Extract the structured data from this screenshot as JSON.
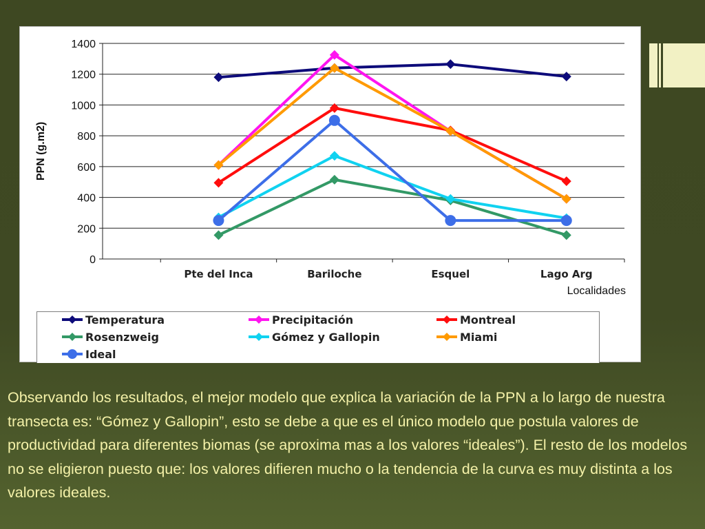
{
  "chart_data": {
    "type": "line",
    "categories": [
      "Pte del Inca",
      "Bariloche",
      "Esquel",
      "Lago Arg"
    ],
    "ylabel": "PPN (g.m2)",
    "xlabel": "Localidades",
    "ylim": [
      0,
      1400
    ],
    "yticks": [
      0,
      200,
      400,
      600,
      800,
      1000,
      1200,
      1400
    ],
    "grid": true,
    "legend_position": "bottom",
    "series": [
      {
        "name": "Temperatura",
        "color": "#0d0b7a",
        "marker": "diamond",
        "values": [
          1180,
          1240,
          1265,
          1185
        ]
      },
      {
        "name": "Precipitación",
        "color": "#ff14f0",
        "marker": "diamond",
        "values": [
          610,
          1325,
          830,
          390
        ]
      },
      {
        "name": "Montreal",
        "color": "#ff0d0d",
        "marker": "diamond",
        "values": [
          495,
          980,
          835,
          505
        ]
      },
      {
        "name": "Rosenzweig",
        "color": "#339966",
        "marker": "diamond",
        "values": [
          155,
          515,
          380,
          155
        ]
      },
      {
        "name": "Gómez y Gallopin",
        "color": "#10d2f0",
        "marker": "diamond",
        "values": [
          270,
          670,
          390,
          265
        ]
      },
      {
        "name": "Miami",
        "color": "#ff9a00",
        "marker": "diamond",
        "values": [
          610,
          1240,
          830,
          390
        ]
      },
      {
        "name": "Ideal",
        "color": "#3d6ee8",
        "marker": "circle",
        "values": [
          250,
          900,
          250,
          250
        ]
      }
    ]
  },
  "text": {
    "caption": "Observando los resultados, el mejor modelo que explica la variación de la PPN a lo largo de nuestra transecta es: “Gómez y Gallopin”, esto se debe a que es el único modelo que postula valores de productividad para diferentes biomas (se aproxima mas a los valores “ideales”). El resto de los modelos no se eligieron puesto que: los valores difieren mucho o la tendencia de la curva es muy distinta a los valores ideales."
  },
  "colors": {
    "background": "#3e4822",
    "caption_text": "#f4f1a8",
    "accent_deco": "#f2f1c4"
  }
}
